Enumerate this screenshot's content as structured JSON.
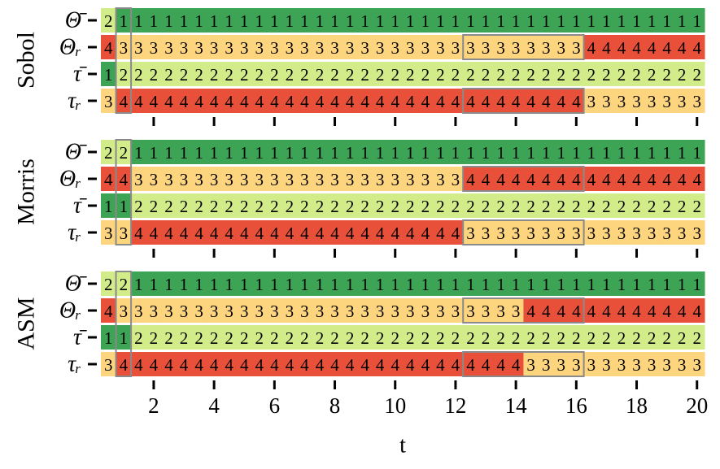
{
  "chart_data": {
    "type": "heatmap",
    "xlabel": "t",
    "xlim": [
      0.25,
      20.25
    ],
    "xticks": [
      2,
      4,
      6,
      8,
      10,
      12,
      14,
      16,
      18,
      20
    ],
    "x": [
      0.5,
      1,
      1.5,
      2,
      2.5,
      3,
      3.5,
      4,
      4.5,
      5,
      5.5,
      6,
      6.5,
      7,
      7.5,
      8,
      8.5,
      9,
      9.5,
      10,
      10.5,
      11,
      11.5,
      12,
      12.5,
      13,
      13.5,
      14,
      14.5,
      15,
      15.5,
      16,
      16.5,
      17,
      17.5,
      18,
      18.5,
      19,
      19.5,
      20
    ],
    "rank_colors": {
      "1": "#3ca454",
      "2": "#d3ec8a",
      "3": "#fdd57f",
      "4": "#e8503a"
    },
    "panels": [
      {
        "label": "Sobol",
        "rows": [
          {
            "name": "Θ̄",
            "values": [
              2,
              1,
              1,
              1,
              1,
              1,
              1,
              1,
              1,
              1,
              1,
              1,
              1,
              1,
              1,
              1,
              1,
              1,
              1,
              1,
              1,
              1,
              1,
              1,
              1,
              1,
              1,
              1,
              1,
              1,
              1,
              1,
              1,
              1,
              1,
              1,
              1,
              1,
              1,
              1
            ]
          },
          {
            "name": "Θᵣ",
            "values": [
              4,
              3,
              3,
              3,
              3,
              3,
              3,
              3,
              3,
              3,
              3,
              3,
              3,
              3,
              3,
              3,
              3,
              3,
              3,
              3,
              3,
              3,
              3,
              3,
              3,
              3,
              3,
              3,
              3,
              3,
              3,
              3,
              4,
              4,
              4,
              4,
              4,
              4,
              4,
              4
            ]
          },
          {
            "name": "τ̄",
            "values": [
              1,
              2,
              2,
              2,
              2,
              2,
              2,
              2,
              2,
              2,
              2,
              2,
              2,
              2,
              2,
              2,
              2,
              2,
              2,
              2,
              2,
              2,
              2,
              2,
              2,
              2,
              2,
              2,
              2,
              2,
              2,
              2,
              2,
              2,
              2,
              2,
              2,
              2,
              2,
              2
            ]
          },
          {
            "name": "τᵣ",
            "values": [
              3,
              4,
              4,
              4,
              4,
              4,
              4,
              4,
              4,
              4,
              4,
              4,
              4,
              4,
              4,
              4,
              4,
              4,
              4,
              4,
              4,
              4,
              4,
              4,
              4,
              4,
              4,
              4,
              4,
              4,
              4,
              4,
              3,
              3,
              3,
              3,
              3,
              3,
              3,
              3
            ]
          }
        ]
      },
      {
        "label": "Morris",
        "rows": [
          {
            "name": "Θ̄",
            "values": [
              2,
              2,
              1,
              1,
              1,
              1,
              1,
              1,
              1,
              1,
              1,
              1,
              1,
              1,
              1,
              1,
              1,
              1,
              1,
              1,
              1,
              1,
              1,
              1,
              1,
              1,
              1,
              1,
              1,
              1,
              1,
              1,
              1,
              1,
              1,
              1,
              1,
              1,
              1,
              1
            ]
          },
          {
            "name": "Θᵣ",
            "values": [
              4,
              4,
              3,
              3,
              3,
              3,
              3,
              3,
              3,
              3,
              3,
              3,
              3,
              3,
              3,
              3,
              3,
              3,
              3,
              3,
              3,
              3,
              3,
              3,
              4,
              4,
              4,
              4,
              4,
              4,
              4,
              4,
              4,
              4,
              4,
              4,
              4,
              4,
              4,
              4
            ]
          },
          {
            "name": "τ̄",
            "values": [
              1,
              1,
              2,
              2,
              2,
              2,
              2,
              2,
              2,
              2,
              2,
              2,
              2,
              2,
              2,
              2,
              2,
              2,
              2,
              2,
              2,
              2,
              2,
              2,
              2,
              2,
              2,
              2,
              2,
              2,
              2,
              2,
              2,
              2,
              2,
              2,
              2,
              2,
              2,
              2
            ]
          },
          {
            "name": "τᵣ",
            "values": [
              3,
              3,
              4,
              4,
              4,
              4,
              4,
              4,
              4,
              4,
              4,
              4,
              4,
              4,
              4,
              4,
              4,
              4,
              4,
              4,
              4,
              4,
              4,
              4,
              3,
              3,
              3,
              3,
              3,
              3,
              3,
              3,
              3,
              3,
              3,
              3,
              3,
              3,
              3,
              3
            ]
          }
        ]
      },
      {
        "label": "ASM",
        "rows": [
          {
            "name": "Θ̄",
            "values": [
              2,
              2,
              1,
              1,
              1,
              1,
              1,
              1,
              1,
              1,
              1,
              1,
              1,
              1,
              1,
              1,
              1,
              1,
              1,
              1,
              1,
              1,
              1,
              1,
              1,
              1,
              1,
              1,
              1,
              1,
              1,
              1,
              1,
              1,
              1,
              1,
              1,
              1,
              1,
              1
            ]
          },
          {
            "name": "Θᵣ",
            "values": [
              4,
              3,
              3,
              3,
              3,
              3,
              3,
              3,
              3,
              3,
              3,
              3,
              3,
              3,
              3,
              3,
              3,
              3,
              3,
              3,
              3,
              3,
              3,
              3,
              3,
              3,
              3,
              3,
              4,
              4,
              4,
              4,
              4,
              4,
              4,
              4,
              4,
              4,
              4,
              4
            ]
          },
          {
            "name": "τ̄",
            "values": [
              1,
              1,
              2,
              2,
              2,
              2,
              2,
              2,
              2,
              2,
              2,
              2,
              2,
              2,
              2,
              2,
              2,
              2,
              2,
              2,
              2,
              2,
              2,
              2,
              2,
              2,
              2,
              2,
              2,
              2,
              2,
              2,
              2,
              2,
              2,
              2,
              2,
              2,
              2,
              2
            ]
          },
          {
            "name": "τᵣ",
            "values": [
              3,
              4,
              4,
              4,
              4,
              4,
              4,
              4,
              4,
              4,
              4,
              4,
              4,
              4,
              4,
              4,
              4,
              4,
              4,
              4,
              4,
              4,
              4,
              4,
              4,
              4,
              4,
              4,
              3,
              3,
              3,
              3,
              3,
              3,
              3,
              3,
              3,
              3,
              3,
              3
            ]
          }
        ]
      }
    ]
  }
}
